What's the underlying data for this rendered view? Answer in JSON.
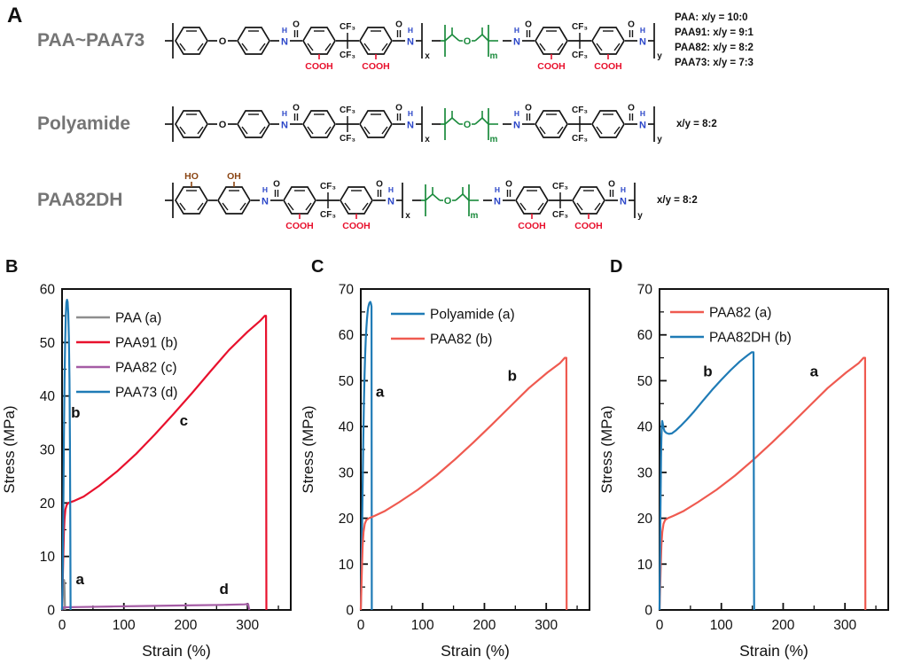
{
  "panelA": {
    "label": "A",
    "names": [
      "PAA~PAA73",
      "Polyamide",
      "PAA82DH"
    ],
    "series_key": [
      "PAA: x/y = 10:0",
      "PAA91: x/y = 9:1",
      "PAA82: x/y = 8:2",
      "PAA73: x/y = 7:3"
    ],
    "ratio_labels": {
      "polyamide": "x/y = 8:2",
      "paa82dh": "x/y = 8:2"
    },
    "structures": [
      {
        "tokens": [
          {
            "t": "bo"
          },
          {
            "t": "ring"
          },
          {
            "t": "b"
          },
          {
            "t": "at",
            "s": "O"
          },
          {
            "t": "b"
          },
          {
            "t": "ring"
          },
          {
            "t": "b"
          },
          {
            "t": "nh",
            "h": "H",
            "n": "N",
            "c": "#2b46c8"
          },
          {
            "t": "co",
            "s": "O"
          },
          {
            "t": "ring",
            "bot": "COOH",
            "bc": "#e8112d"
          },
          {
            "t": "cf3",
            "s": "CF₃"
          },
          {
            "t": "ring",
            "bot": "COOH",
            "bc": "#e8112d"
          },
          {
            "t": "co",
            "s": "O"
          },
          {
            "t": "nh",
            "h": "H",
            "n": "N",
            "c": "#2b46c8"
          },
          {
            "t": "bkc",
            "sub": "x"
          },
          {
            "t": "b"
          },
          {
            "t": "peg",
            "s": "O",
            "sub": "m",
            "c": "#1a8a3c"
          },
          {
            "t": "b"
          },
          {
            "t": "nh",
            "h": "H",
            "n": "N",
            "c": "#2b46c8"
          },
          {
            "t": "co",
            "s": "O"
          },
          {
            "t": "ring",
            "bot": "COOH",
            "bc": "#e8112d"
          },
          {
            "t": "cf3",
            "s": "CF₃"
          },
          {
            "t": "ring",
            "bot": "COOH",
            "bc": "#e8112d"
          },
          {
            "t": "co",
            "s": "O"
          },
          {
            "t": "nh",
            "h": "H",
            "n": "N",
            "c": "#2b46c8"
          },
          {
            "t": "bkc",
            "sub": "y"
          }
        ]
      },
      {
        "tokens": [
          {
            "t": "bo"
          },
          {
            "t": "ring"
          },
          {
            "t": "b"
          },
          {
            "t": "at",
            "s": "O"
          },
          {
            "t": "b"
          },
          {
            "t": "ring"
          },
          {
            "t": "b"
          },
          {
            "t": "nh",
            "h": "H",
            "n": "N",
            "c": "#2b46c8"
          },
          {
            "t": "co",
            "s": "O"
          },
          {
            "t": "ring"
          },
          {
            "t": "cf3",
            "s": "CF₃"
          },
          {
            "t": "ring"
          },
          {
            "t": "co",
            "s": "O"
          },
          {
            "t": "nh",
            "h": "H",
            "n": "N",
            "c": "#2b46c8"
          },
          {
            "t": "bkc",
            "sub": "x"
          },
          {
            "t": "b"
          },
          {
            "t": "peg",
            "s": "O",
            "sub": "m",
            "c": "#1a8a3c"
          },
          {
            "t": "b"
          },
          {
            "t": "nh",
            "h": "H",
            "n": "N",
            "c": "#2b46c8"
          },
          {
            "t": "co",
            "s": "O"
          },
          {
            "t": "ring"
          },
          {
            "t": "cf3",
            "s": "CF₃"
          },
          {
            "t": "ring"
          },
          {
            "t": "co",
            "s": "O"
          },
          {
            "t": "nh",
            "h": "H",
            "n": "N",
            "c": "#2b46c8"
          },
          {
            "t": "bkc",
            "sub": "y"
          }
        ]
      },
      {
        "tokens": [
          {
            "t": "bo"
          },
          {
            "t": "ring",
            "top": "HO",
            "tc": "#8b4513"
          },
          {
            "t": "b"
          },
          {
            "t": "ring",
            "top": "OH",
            "tc": "#8b4513"
          },
          {
            "t": "b"
          },
          {
            "t": "nh",
            "h": "H",
            "n": "N",
            "c": "#2b46c8"
          },
          {
            "t": "co",
            "s": "O"
          },
          {
            "t": "ring",
            "bot": "COOH",
            "bc": "#e8112d"
          },
          {
            "t": "cf3",
            "s": "CF₃"
          },
          {
            "t": "ring",
            "bot": "COOH",
            "bc": "#e8112d"
          },
          {
            "t": "co",
            "s": "O"
          },
          {
            "t": "nh",
            "h": "H",
            "n": "N",
            "c": "#2b46c8"
          },
          {
            "t": "bkc",
            "sub": "x"
          },
          {
            "t": "b"
          },
          {
            "t": "peg",
            "s": "O",
            "sub": "m",
            "c": "#1a8a3c"
          },
          {
            "t": "b"
          },
          {
            "t": "nh",
            "h": "H",
            "n": "N",
            "c": "#2b46c8"
          },
          {
            "t": "co",
            "s": "O"
          },
          {
            "t": "ring",
            "bot": "COOH",
            "bc": "#e8112d"
          },
          {
            "t": "cf3",
            "s": "CF₃"
          },
          {
            "t": "ring",
            "bot": "COOH",
            "bc": "#e8112d"
          },
          {
            "t": "co",
            "s": "O"
          },
          {
            "t": "nh",
            "h": "H",
            "n": "N",
            "c": "#2b46c8"
          },
          {
            "t": "bkc",
            "sub": "y"
          }
        ]
      }
    ]
  },
  "chart_data": [
    {
      "panel": "B",
      "type": "line",
      "xlabel": "Strain (%)",
      "ylabel": "Stress (MPa)",
      "xlim": [
        0,
        370
      ],
      "ylim": [
        0,
        60
      ],
      "xticks": [
        0,
        100,
        200,
        300
      ],
      "yticks": [
        0,
        10,
        20,
        30,
        40,
        50,
        60
      ],
      "legend_position": "upper-left",
      "legend_offset": [
        16,
        32
      ],
      "series": [
        {
          "name": "PAA (a)",
          "color": "#8e8e8e",
          "pts": [
            [
              0,
              0
            ],
            [
              0.7,
              1.5
            ],
            [
              1.5,
              3.6
            ],
            [
              2.5,
              5.2
            ],
            [
              3.3,
              5.6
            ],
            [
              3.8,
              5.2
            ],
            [
              4.3,
              3
            ],
            [
              4.7,
              0
            ]
          ]
        },
        {
          "name": "PAA91 (b)",
          "color": "#e8112d",
          "pts": [
            [
              0,
              0
            ],
            [
              1,
              5
            ],
            [
              2,
              10
            ],
            [
              3,
              14.5
            ],
            [
              4,
              17
            ],
            [
              5.5,
              18.8
            ],
            [
              7.5,
              19.6
            ],
            [
              10,
              20
            ],
            [
              20,
              20.4
            ],
            [
              35,
              21.2
            ],
            [
              60,
              23.2
            ],
            [
              90,
              26
            ],
            [
              120,
              29.2
            ],
            [
              150,
              32.8
            ],
            [
              180,
              36.6
            ],
            [
              210,
              40.5
            ],
            [
              240,
              44.6
            ],
            [
              270,
              48.6
            ],
            [
              300,
              52
            ],
            [
              320,
              54
            ],
            [
              328,
              55
            ],
            [
              330,
              55
            ],
            [
              330.5,
              0
            ]
          ]
        },
        {
          "name": "PAA82 (c)",
          "color": "#a55ca5",
          "pts": [
            [
              0,
              0
            ],
            [
              3,
              0.5
            ],
            [
              30,
              0.55
            ],
            [
              80,
              0.65
            ],
            [
              140,
              0.75
            ],
            [
              200,
              0.85
            ],
            [
              260,
              0.95
            ],
            [
              295,
              1.05
            ],
            [
              301,
              1.1
            ],
            [
              303,
              0
            ]
          ]
        },
        {
          "name": "PAA73 (d)",
          "color": "#1f7bb6",
          "pts": [
            [
              0,
              0
            ],
            [
              1,
              6
            ],
            [
              2,
              18
            ],
            [
              3,
              32
            ],
            [
              4,
              43
            ],
            [
              5,
              50
            ],
            [
              6,
              55
            ],
            [
              7,
              57.5
            ],
            [
              8,
              58
            ],
            [
              9,
              57.6
            ],
            [
              10,
              55.5
            ],
            [
              11,
              51
            ],
            [
              12,
              43
            ],
            [
              12.8,
              31
            ],
            [
              13.4,
              16
            ],
            [
              13.8,
              0
            ]
          ]
        }
      ],
      "annotations": [
        {
          "text": "a",
          "x": 29,
          "y": 4.8
        },
        {
          "text": "b",
          "x": 22,
          "y": 36
        },
        {
          "text": "c",
          "x": 197,
          "y": 34.5
        },
        {
          "text": "d",
          "x": 262,
          "y": 3
        }
      ]
    },
    {
      "panel": "C",
      "type": "line",
      "xlabel": "Strain (%)",
      "ylabel": "Stress (MPa)",
      "xlim": [
        0,
        370
      ],
      "ylim": [
        0,
        70
      ],
      "xticks": [
        0,
        100,
        200,
        300
      ],
      "yticks": [
        0,
        10,
        20,
        30,
        40,
        50,
        60,
        70
      ],
      "legend_position": "upper-left",
      "legend_offset": [
        34,
        28
      ],
      "series": [
        {
          "name": "Polyamide (a)",
          "color": "#1f7bb6",
          "pts": [
            [
              0,
              0
            ],
            [
              1,
              8
            ],
            [
              2,
              17
            ],
            [
              3,
              27
            ],
            [
              4,
              37
            ],
            [
              5,
              45
            ],
            [
              6,
              51
            ],
            [
              7,
              55.5
            ],
            [
              8,
              59
            ],
            [
              9,
              61.5
            ],
            [
              10,
              63.5
            ],
            [
              11,
              65
            ],
            [
              12,
              66
            ],
            [
              13,
              66.6
            ],
            [
              14,
              67
            ],
            [
              15.5,
              67.2
            ],
            [
              16.5,
              66.8
            ],
            [
              17.3,
              66.2
            ],
            [
              17.8,
              0
            ]
          ]
        },
        {
          "name": "PAA82 (b)",
          "color": "#ef5a50",
          "pts": [
            [
              0,
              0
            ],
            [
              1,
              5
            ],
            [
              2,
              10
            ],
            [
              3,
              14
            ],
            [
              4.5,
              17
            ],
            [
              6.5,
              18.8
            ],
            [
              9,
              19.6
            ],
            [
              13,
              20
            ],
            [
              22,
              20.5
            ],
            [
              38,
              21.5
            ],
            [
              62,
              23.5
            ],
            [
              92,
              26.2
            ],
            [
              122,
              29.3
            ],
            [
              152,
              32.8
            ],
            [
              182,
              36.5
            ],
            [
              212,
              40.4
            ],
            [
              242,
              44.4
            ],
            [
              272,
              48.4
            ],
            [
              302,
              51.8
            ],
            [
              322,
              53.8
            ],
            [
              330,
              55
            ],
            [
              332.5,
              55
            ],
            [
              333,
              0
            ]
          ]
        }
      ],
      "annotations": [
        {
          "text": "a",
          "x": 31,
          "y": 46.5
        },
        {
          "text": "b",
          "x": 245,
          "y": 50
        }
      ]
    },
    {
      "panel": "D",
      "type": "line",
      "xlabel": "Strain (%)",
      "ylabel": "Stress (MPa)",
      "xlim": [
        0,
        370
      ],
      "ylim": [
        0,
        70
      ],
      "xticks": [
        0,
        100,
        200,
        300
      ],
      "yticks": [
        0,
        10,
        20,
        30,
        40,
        50,
        60,
        70
      ],
      "legend_position": "upper-left",
      "legend_offset": [
        12,
        26
      ],
      "series": [
        {
          "name": "PAA82 (a)",
          "color": "#ef5a50",
          "pts": [
            [
              0,
              0
            ],
            [
              1,
              5
            ],
            [
              2,
              10
            ],
            [
              3,
              14
            ],
            [
              4.5,
              17
            ],
            [
              6.5,
              18.8
            ],
            [
              9,
              19.6
            ],
            [
              13,
              20
            ],
            [
              22,
              20.5
            ],
            [
              38,
              21.5
            ],
            [
              62,
              23.5
            ],
            [
              92,
              26.2
            ],
            [
              122,
              29.3
            ],
            [
              152,
              32.8
            ],
            [
              182,
              36.5
            ],
            [
              212,
              40.4
            ],
            [
              242,
              44.4
            ],
            [
              272,
              48.4
            ],
            [
              302,
              51.8
            ],
            [
              322,
              53.8
            ],
            [
              330,
              55
            ],
            [
              332.5,
              55
            ],
            [
              333,
              0
            ]
          ]
        },
        {
          "name": "PAA82DH (b)",
          "color": "#1f7bb6",
          "pts": [
            [
              0,
              0
            ],
            [
              0.5,
              6
            ],
            [
              1,
              13
            ],
            [
              1.5,
              21
            ],
            [
              2,
              28
            ],
            [
              2.5,
              33.5
            ],
            [
              3,
              37.5
            ],
            [
              3.7,
              40.3
            ],
            [
              4.3,
              41.2
            ],
            [
              5,
              40.8
            ],
            [
              6,
              39.9
            ],
            [
              8,
              39
            ],
            [
              11,
              38.6
            ],
            [
              15,
              38.4
            ],
            [
              20,
              38.5
            ],
            [
              26,
              39.1
            ],
            [
              34,
              40.1
            ],
            [
              44,
              41.5
            ],
            [
              56,
              43.3
            ],
            [
              70,
              45.6
            ],
            [
              85,
              48
            ],
            [
              100,
              50.2
            ],
            [
              115,
              52.3
            ],
            [
              130,
              54.2
            ],
            [
              142,
              55.5
            ],
            [
              149,
              56.2
            ],
            [
              152,
              56.2
            ],
            [
              153,
              0
            ]
          ]
        }
      ],
      "annotations": [
        {
          "text": "b",
          "x": 78,
          "y": 51
        },
        {
          "text": "a",
          "x": 250,
          "y": 51
        }
      ]
    }
  ]
}
